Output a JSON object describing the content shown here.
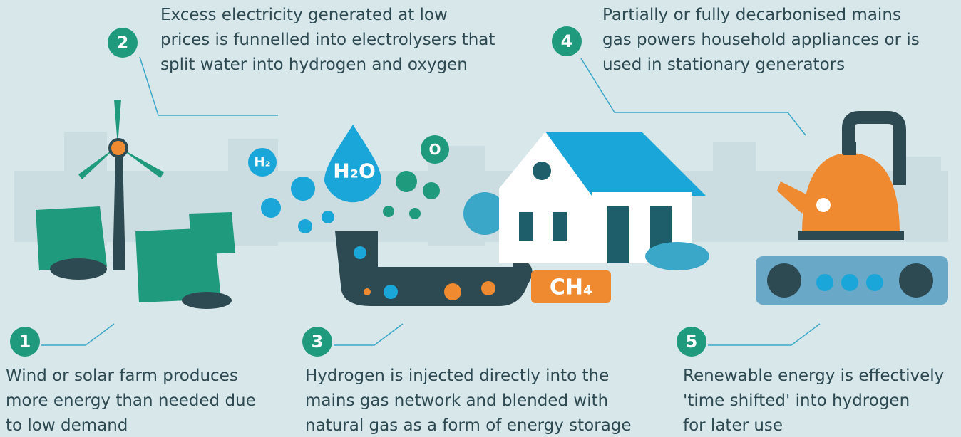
{
  "steps": [
    {
      "number": "1",
      "lines": [
        "Wind or solar farm produces",
        "more energy than needed due",
        "to low demand"
      ]
    },
    {
      "number": "2",
      "lines": [
        "Excess electricity generated at low",
        "prices is funnelled into electrolysers that",
        "split water into hydrogen and oxygen"
      ]
    },
    {
      "number": "3",
      "lines": [
        "Hydrogen is injected directly into the",
        "mains gas network and blended with",
        "natural gas as a form of energy storage"
      ]
    },
    {
      "number": "4",
      "lines": [
        "Partially or fully decarbonised mains",
        "gas powers household appliances or is",
        "used in stationary generators"
      ]
    },
    {
      "number": "5",
      "lines": [
        "Renewable energy is effectively",
        "'time shifted' into hydrogen",
        "for later use"
      ]
    }
  ],
  "molecules": {
    "water": "H₂O",
    "hydrogen": "H₂",
    "oxygen": "O",
    "methane": "CH₄"
  }
}
